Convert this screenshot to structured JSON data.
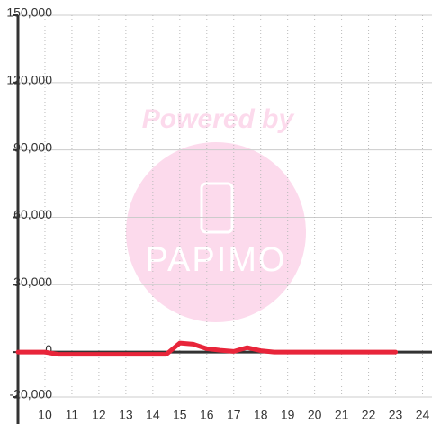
{
  "chart_data": {
    "type": "line",
    "x": [
      9,
      9.5,
      10,
      10.5,
      11,
      11.5,
      12,
      12.5,
      13,
      13.5,
      14,
      14.5,
      15,
      15.5,
      16,
      16.5,
      17,
      17.5,
      18,
      18.5,
      19,
      19.5,
      20,
      20.5,
      21,
      21.5,
      22,
      22.5,
      23
    ],
    "series": [
      {
        "color": "#e8253a",
        "values": [
          0,
          0,
          0,
          -1000,
          -1000,
          -1000,
          -1000,
          -1000,
          -1000,
          -1000,
          -1000,
          -1000,
          4000,
          3500,
          1500,
          800,
          300,
          2000,
          600,
          0,
          0,
          0,
          0,
          0,
          0,
          0,
          0,
          0,
          0
        ]
      }
    ],
    "xlim": [
      9,
      24.35
    ],
    "xticks": [
      10,
      11,
      12,
      13,
      14,
      15,
      16,
      17,
      18,
      19,
      20,
      21,
      22,
      23,
      24
    ],
    "ylim": [
      -20000,
      150000
    ],
    "yticks": [
      {
        "value": -20000,
        "label": "-20,000"
      },
      0,
      {
        "value": 30000,
        "label": "30,000"
      },
      {
        "value": 60000,
        "label": "60,000"
      },
      {
        "value": 90000,
        "label": "90,000"
      },
      {
        "value": 120000,
        "label": "120,000"
      },
      {
        "value": 150000,
        "label": "150,000"
      }
    ],
    "grid": true
  },
  "watermark": {
    "text": "Powered by",
    "logo": "PAPIMO"
  }
}
